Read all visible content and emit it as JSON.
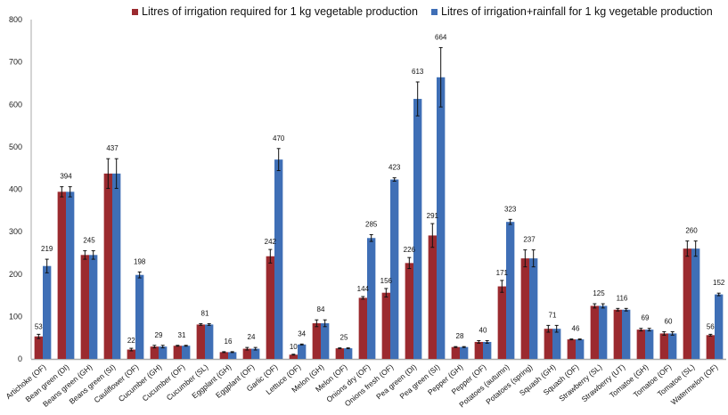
{
  "chart_data": {
    "type": "bar",
    "title": "",
    "xlabel": "",
    "ylabel": "",
    "ylim": [
      0,
      800
    ],
    "yticks": [
      0,
      100,
      200,
      300,
      400,
      500,
      600,
      700,
      800
    ],
    "grid": false,
    "legend_position": "top",
    "categories": [
      "Artichoke (OF)",
      "Bean green (DI)",
      "Beans green (GH)",
      "Beans green (SI)",
      "Cauliflower (OF)",
      "Cucumber (GH)",
      "Cucumber (OF)",
      "Cucumber (SL)",
      "Eggplant (GH)",
      "Eggplant (OF)",
      "Garlic (OF)",
      "Lettuce (OF)",
      "Melon (GH)",
      "Melon (OF)",
      "Onions dry (OF)",
      "Onions fresh (OF)",
      "Pea green (DI)",
      "Pea green (SI)",
      "Pepper (GH)",
      "Pepper (OF)",
      "Potatoes (autumn)",
      "Potatoes (spring)",
      "Squash (GH)",
      "Squash (OF)",
      "Strawberry (SL)",
      "Strawberry (UT)",
      "Tomatoe (GH)",
      "Tomatoe (OF)",
      "Tomatoe (SL)",
      "Watermelon (OF)"
    ],
    "series": [
      {
        "name": "Litres of irrigation required for 1 kg vegetable production",
        "color": "#9b2a2f",
        "values": [
          53,
          394,
          245,
          437,
          22,
          29,
          31,
          81,
          16,
          24,
          242,
          10,
          84,
          25,
          144,
          156,
          226,
          291,
          28,
          40,
          171,
          237,
          71,
          46,
          125,
          116,
          69,
          60,
          260,
          56
        ],
        "errors": [
          5,
          12,
          10,
          35,
          3,
          3,
          1,
          2,
          1,
          3,
          16,
          1,
          8,
          1,
          3,
          10,
          13,
          28,
          1,
          3,
          14,
          20,
          8,
          1,
          5,
          3,
          3,
          4,
          18,
          2
        ],
        "labels": [
          "53",
          "",
          "",
          "",
          "22",
          "",
          "",
          "",
          "",
          "",
          "242",
          "10",
          "",
          "",
          "144",
          "156",
          "226",
          "291",
          "",
          "",
          "171",
          "",
          "",
          "",
          "",
          "",
          "",
          "",
          "",
          "56"
        ]
      },
      {
        "name": "Litres of irrigation+rainfall for 1 kg vegetable production",
        "color": "#3f6fb6",
        "values": [
          219,
          394,
          245,
          437,
          198,
          29,
          31,
          81,
          16,
          24,
          470,
          34,
          84,
          25,
          285,
          423,
          613,
          664,
          28,
          40,
          323,
          237,
          71,
          46,
          125,
          116,
          69,
          60,
          260,
          152
        ],
        "errors": [
          16,
          12,
          10,
          35,
          7,
          3,
          1,
          2,
          1,
          3,
          26,
          1,
          8,
          1,
          8,
          4,
          40,
          70,
          1,
          3,
          6,
          20,
          8,
          1,
          5,
          3,
          3,
          4,
          18,
          3
        ],
        "labels": [
          "219",
          "394",
          "245",
          "437",
          "198",
          "29",
          "31",
          "81",
          "16",
          "24",
          "470",
          "34",
          "84",
          "25",
          "285",
          "423",
          "613",
          "664",
          "28",
          "40",
          "323",
          "237",
          "71",
          "46",
          "125",
          "116",
          "69",
          "60",
          "260",
          "152"
        ]
      }
    ]
  }
}
